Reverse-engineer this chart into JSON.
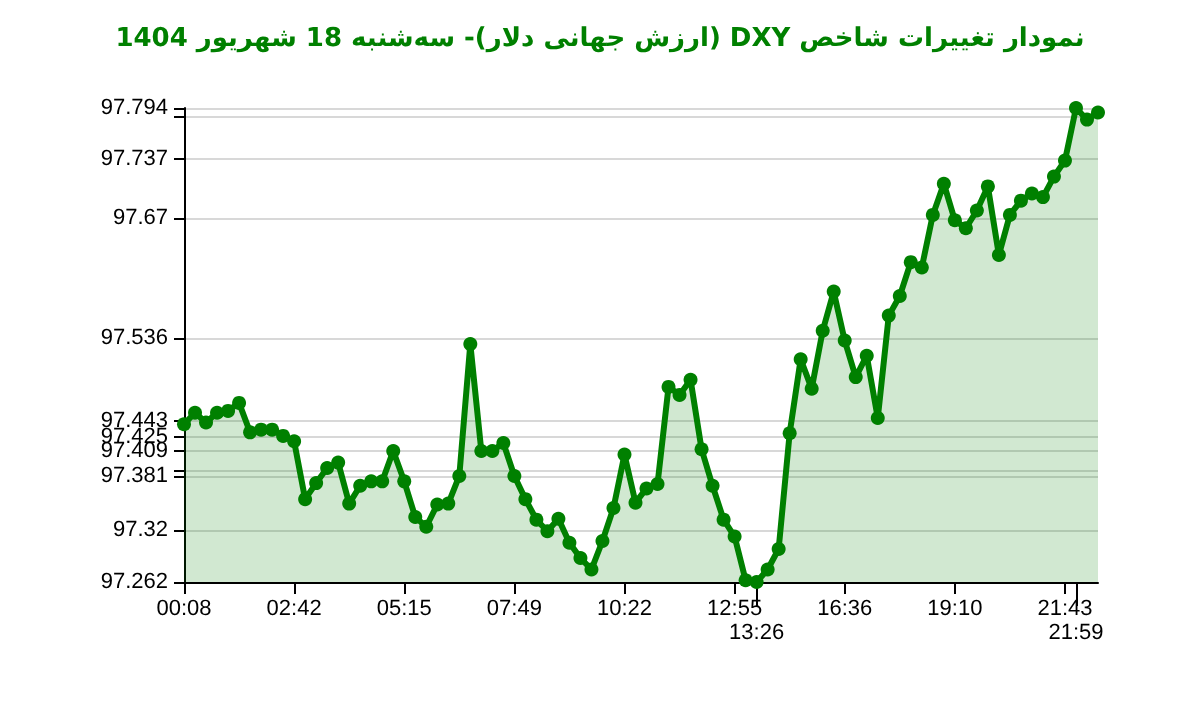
{
  "chart_data": {
    "type": "area",
    "title": "نمودار تغییرات شاخص DXY (ارزش جهانی دلار)- سه‌شنبه  18 شهریور 1404",
    "categories": [
      "00:08",
      null,
      null,
      null,
      null,
      null,
      null,
      null,
      null,
      null,
      "02:42",
      null,
      null,
      null,
      null,
      null,
      null,
      null,
      null,
      null,
      "05:15",
      null,
      null,
      null,
      null,
      null,
      null,
      null,
      null,
      null,
      "07:49",
      null,
      null,
      null,
      null,
      null,
      null,
      null,
      null,
      null,
      "10:22",
      null,
      null,
      null,
      null,
      null,
      null,
      null,
      null,
      null,
      "12:55",
      null,
      "13:26",
      null,
      null,
      null,
      null,
      null,
      null,
      null,
      "16:36",
      null,
      null,
      null,
      null,
      null,
      null,
      null,
      null,
      null,
      "19:10",
      null,
      null,
      null,
      null,
      null,
      null,
      null,
      null,
      null,
      "21:43",
      "21:59",
      null,
      null
    ],
    "series": [
      {
        "color": "#008000",
        "values": [
          97.439,
          97.452,
          97.441,
          97.452,
          97.454,
          97.463,
          97.43,
          97.433,
          97.433,
          97.426,
          97.42,
          97.355,
          97.373,
          97.39,
          97.396,
          97.35,
          97.37,
          97.375,
          97.375,
          97.409,
          97.375,
          97.335,
          97.324,
          97.349,
          97.35,
          97.381,
          97.529,
          97.409,
          97.409,
          97.418,
          97.381,
          97.355,
          97.332,
          97.319,
          97.333,
          97.306,
          97.289,
          97.276,
          97.308,
          97.345,
          97.405,
          97.351,
          97.367,
          97.372,
          97.481,
          97.472,
          97.489,
          97.411,
          97.37,
          97.332,
          97.313,
          97.264,
          97.262,
          97.276,
          97.299,
          97.429,
          97.512,
          97.479,
          97.544,
          97.588,
          97.533,
          97.492,
          97.516,
          97.446,
          97.561,
          97.583,
          97.621,
          97.615,
          97.674,
          97.709,
          97.668,
          97.659,
          97.679,
          97.706,
          97.629,
          97.674,
          97.69,
          97.698,
          97.694,
          97.717,
          97.735,
          97.794,
          97.781,
          97.789
        ]
      }
    ],
    "ylim": [
      97.262,
      97.794
    ],
    "yticks": [
      97.262,
      97.32,
      97.381,
      {
        "value": 97.387,
        "label": null
      },
      97.409,
      97.425,
      97.443,
      97.536,
      97.67,
      97.737,
      {
        "value": 97.784,
        "label": null
      },
      97.794
    ],
    "grid": "y",
    "marker": "circle",
    "line_style": "solid"
  }
}
